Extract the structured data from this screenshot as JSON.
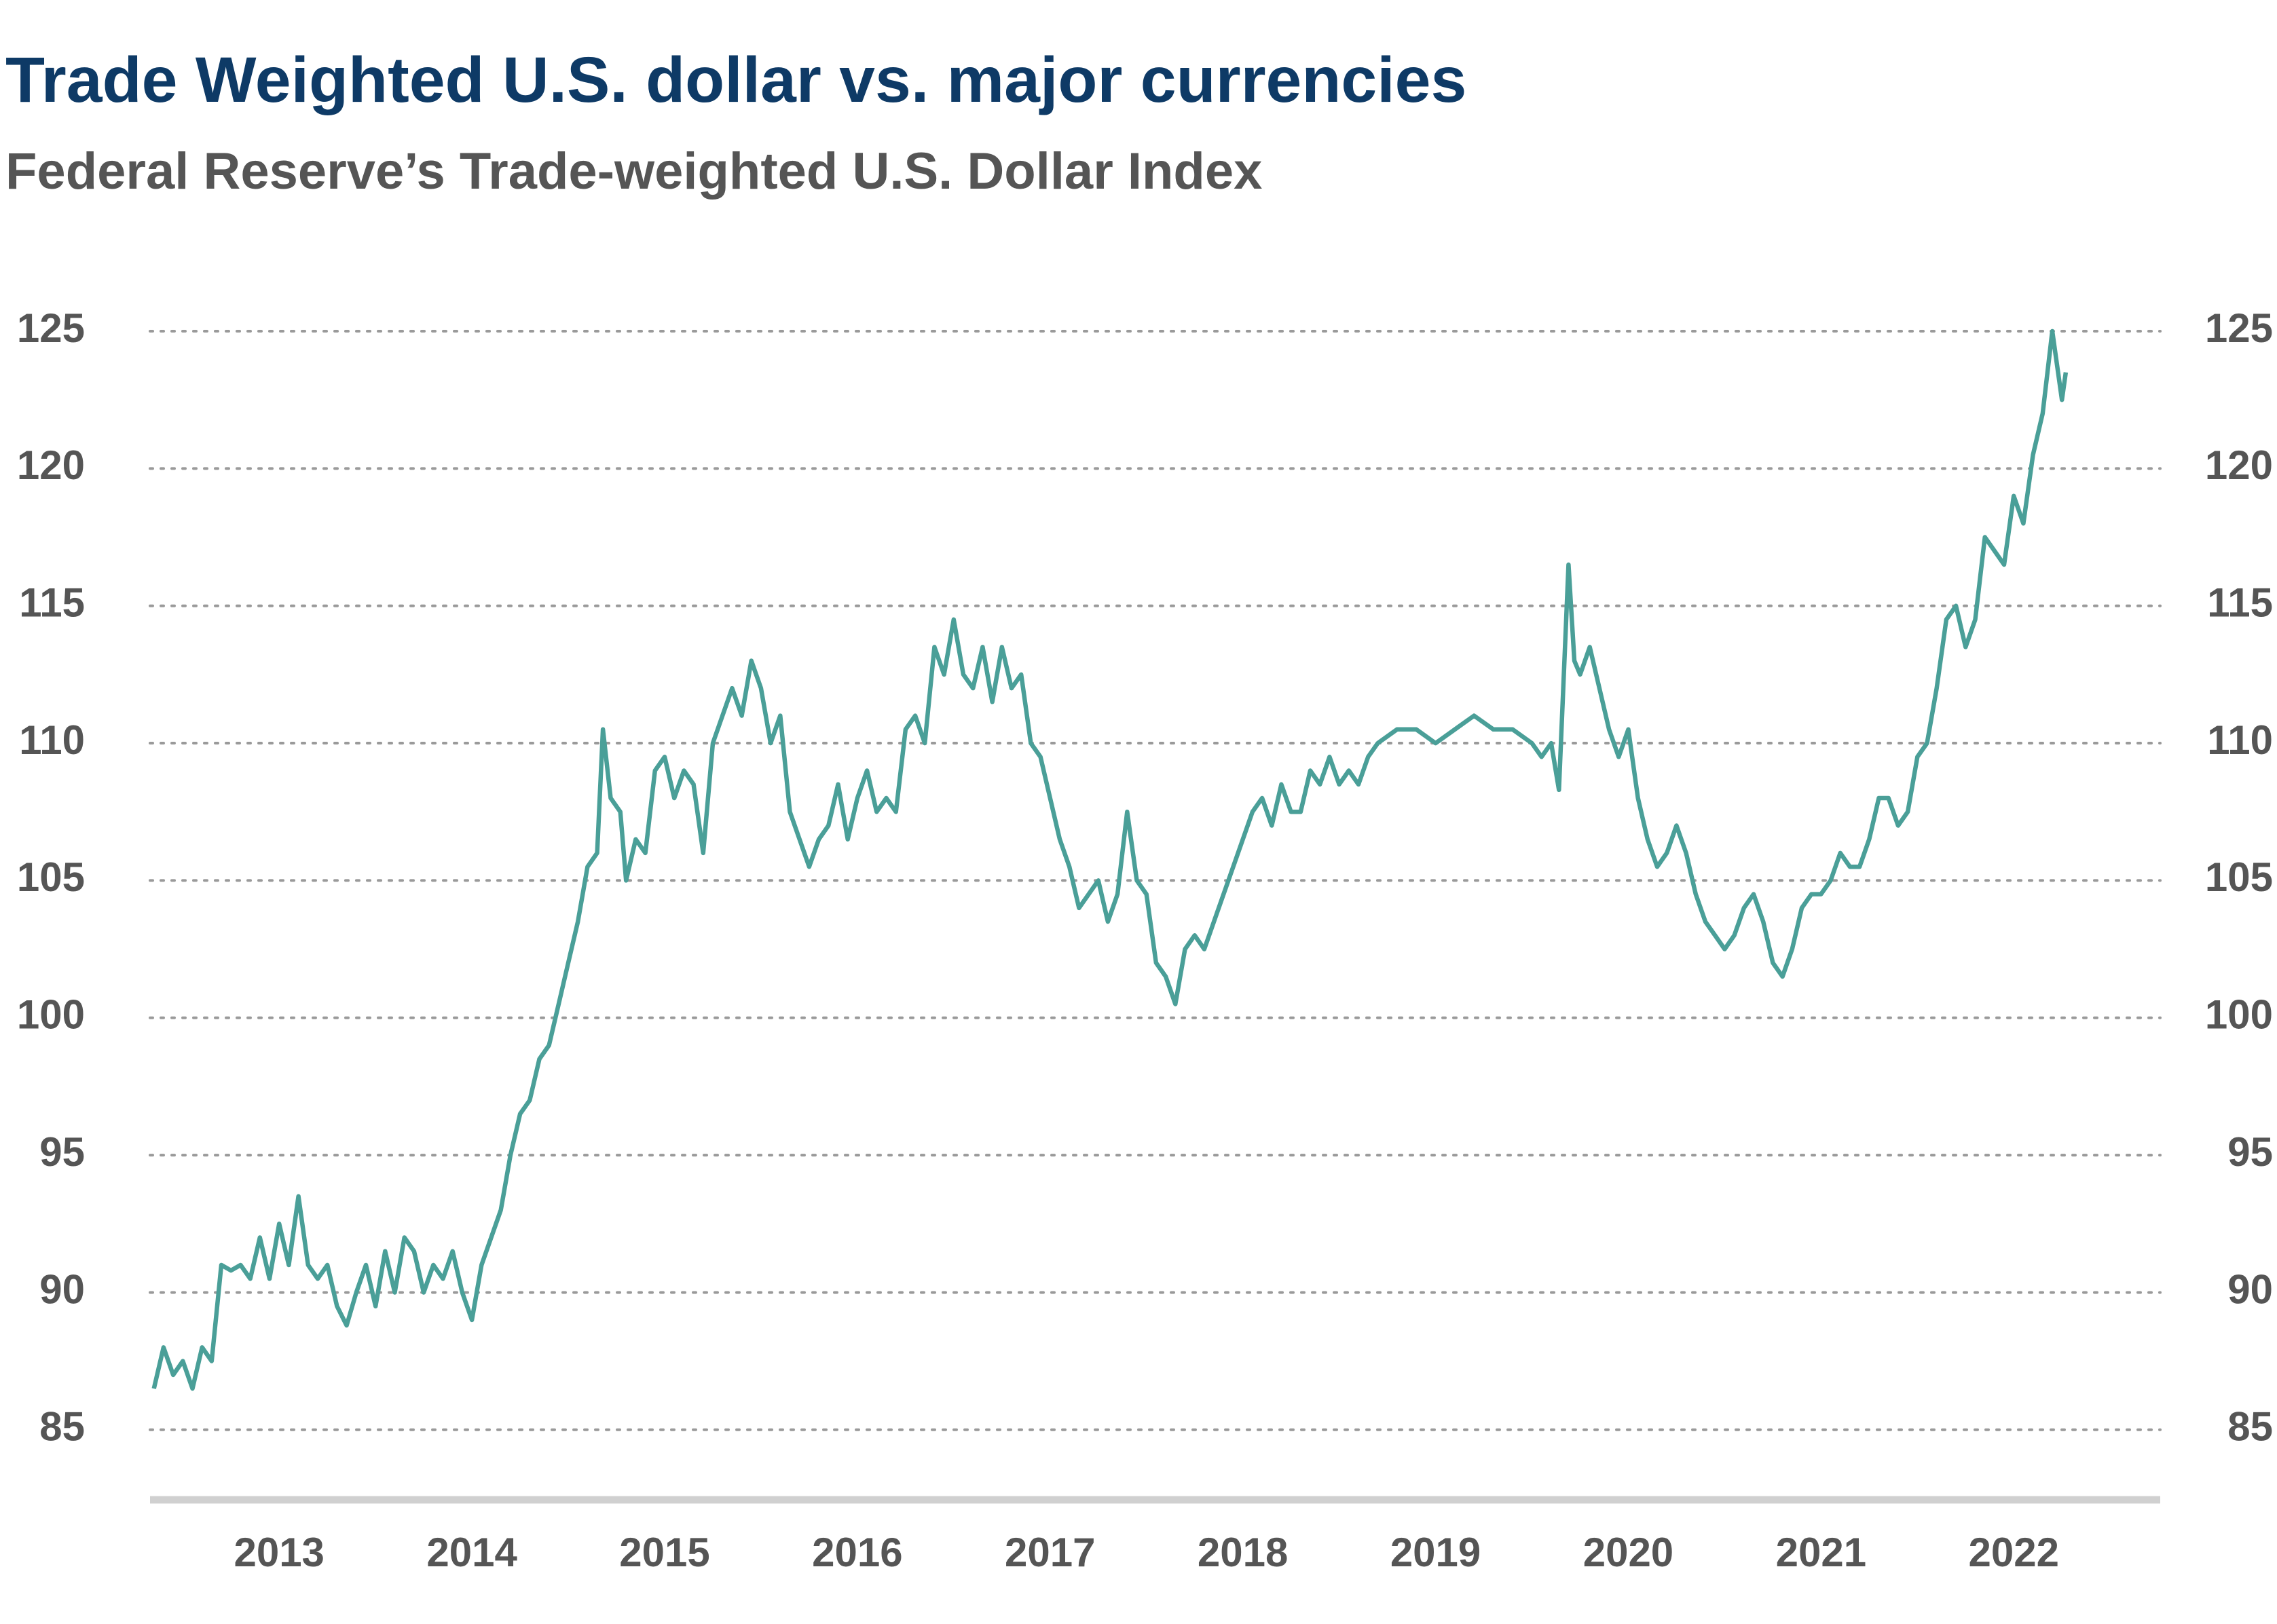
{
  "chart_data": {
    "type": "line",
    "title": "Trade Weighted U.S. dollar vs. major currencies",
    "subtitle": "Federal Reserve’s Trade-weighted U.S. Dollar Index",
    "color": "#4a9f98",
    "x": [
      2012.85,
      2012.9,
      2012.95,
      2013.0,
      2013.05,
      2013.1,
      2013.15,
      2013.2,
      2013.25,
      2013.3,
      2013.35,
      2013.4,
      2013.45,
      2013.5,
      2013.55,
      2013.6,
      2013.65,
      2013.7,
      2013.75,
      2013.8,
      2013.85,
      2013.9,
      2013.95,
      2014.0,
      2014.05,
      2014.1,
      2014.15,
      2014.2,
      2014.25,
      2014.3,
      2014.35,
      2014.4,
      2014.45,
      2014.5,
      2014.55,
      2014.6,
      2014.65,
      2014.7,
      2014.75,
      2014.8,
      2014.85,
      2014.9,
      2014.95,
      2015.0,
      2015.05,
      2015.1,
      2015.15,
      2015.18,
      2015.22,
      2015.27,
      2015.3,
      2015.35,
      2015.4,
      2015.45,
      2015.5,
      2015.55,
      2015.6,
      2015.65,
      2015.7,
      2015.75,
      2015.8,
      2015.85,
      2015.9,
      2015.95,
      2016.0,
      2016.05,
      2016.1,
      2016.15,
      2016.2,
      2016.25,
      2016.3,
      2016.35,
      2016.4,
      2016.45,
      2016.5,
      2016.55,
      2016.6,
      2016.65,
      2016.7,
      2016.75,
      2016.8,
      2016.85,
      2016.9,
      2016.95,
      2017.0,
      2017.05,
      2017.1,
      2017.15,
      2017.2,
      2017.25,
      2017.3,
      2017.35,
      2017.4,
      2017.45,
      2017.5,
      2017.55,
      2017.6,
      2017.65,
      2017.7,
      2017.75,
      2017.8,
      2017.85,
      2017.9,
      2017.95,
      2018.0,
      2018.05,
      2018.1,
      2018.15,
      2018.2,
      2018.25,
      2018.3,
      2018.35,
      2018.45,
      2018.5,
      2018.55,
      2018.6,
      2018.65,
      2018.7,
      2018.75,
      2018.8,
      2018.85,
      2018.9,
      2018.95,
      2019.0,
      2019.05,
      2019.1,
      2019.15,
      2019.2,
      2019.3,
      2019.4,
      2019.5,
      2019.6,
      2019.7,
      2019.8,
      2019.9,
      2020.0,
      2020.05,
      2020.1,
      2020.14,
      2020.19,
      2020.22,
      2020.25,
      2020.3,
      2020.35,
      2020.4,
      2020.45,
      2020.5,
      2020.55,
      2020.6,
      2020.65,
      2020.7,
      2020.75,
      2020.8,
      2020.85,
      2020.9,
      2020.95,
      2021.0,
      2021.05,
      2021.1,
      2021.15,
      2021.2,
      2021.25,
      2021.3,
      2021.35,
      2021.4,
      2021.45,
      2021.5,
      2021.55,
      2021.6,
      2021.65,
      2021.7,
      2021.75,
      2021.8,
      2021.85,
      2021.9,
      2021.95,
      2022.0,
      2022.05,
      2022.1,
      2022.15,
      2022.2,
      2022.25,
      2022.3,
      2022.35,
      2022.4,
      2022.45,
      2022.5,
      2022.55,
      2022.6,
      2022.65,
      2022.7,
      2022.75,
      2022.77
    ],
    "values": [
      86.5,
      88,
      87,
      87.5,
      86.5,
      88,
      87.5,
      91,
      90.8,
      91,
      90.5,
      92,
      90.5,
      92.5,
      91,
      93.5,
      91,
      90.5,
      91,
      89.5,
      88.8,
      90,
      91,
      89.5,
      91.5,
      90,
      92,
      91.5,
      90,
      91,
      90.5,
      91.5,
      90,
      89,
      91,
      92,
      93,
      95,
      96.5,
      97,
      98.5,
      99,
      100.5,
      102,
      103.5,
      105.5,
      106,
      110.5,
      108,
      107.5,
      105,
      106.5,
      106,
      109,
      109.5,
      108,
      109,
      108.5,
      106,
      110,
      111,
      112,
      111,
      113,
      112,
      110,
      111,
      107.5,
      106.5,
      105.5,
      106.5,
      107,
      108.5,
      106.5,
      108,
      109,
      107.5,
      108,
      107.5,
      110.5,
      111,
      110,
      113.5,
      112.5,
      114.5,
      112.5,
      112,
      113.5,
      111.5,
      113.5,
      112,
      112.5,
      110,
      109.5,
      108,
      106.5,
      105.5,
      104,
      104.5,
      105,
      103.5,
      104.5,
      107.5,
      105,
      104.5,
      102,
      101.5,
      100.5,
      102.5,
      103,
      102.5,
      103.5,
      105.5,
      106.5,
      107.5,
      108,
      107,
      108.5,
      107.5,
      107.5,
      109,
      108.5,
      109.5,
      108.5,
      109,
      108.5,
      109.5,
      110,
      110.5,
      110.5,
      110,
      110.5,
      111,
      110.5,
      110.5,
      110,
      109.5,
      110,
      108.3,
      116.5,
      113,
      112.5,
      113.5,
      112,
      110.5,
      109.5,
      110.5,
      108,
      106.5,
      105.5,
      106,
      107,
      106,
      104.5,
      103.5,
      103,
      102.5,
      103,
      104,
      104.5,
      103.5,
      102,
      101.5,
      102.5,
      104,
      104.5,
      104.5,
      105,
      106,
      105.5,
      105.5,
      106.5,
      108,
      108,
      107,
      107.5,
      109.5,
      110,
      112,
      114.5,
      115,
      113.5,
      114.5,
      117.5,
      117,
      116.5,
      119,
      118,
      120.5,
      122,
      125,
      122.5,
      123.5
    ],
    "xlim": [
      2012.83,
      2023.26
    ],
    "xticks": [
      {
        "value": 2013.5,
        "label": "2013"
      },
      {
        "value": 2014.5,
        "label": "2014"
      },
      {
        "value": 2015.5,
        "label": "2015"
      },
      {
        "value": 2016.5,
        "label": "2016"
      },
      {
        "value": 2017.5,
        "label": "2017"
      },
      {
        "value": 2018.5,
        "label": "2018"
      },
      {
        "value": 2019.5,
        "label": "2019"
      },
      {
        "value": 2020.5,
        "label": "2020"
      },
      {
        "value": 2021.5,
        "label": "2021"
      },
      {
        "value": 2022.5,
        "label": "2022"
      }
    ],
    "ylim": [
      82.45,
      125
    ],
    "yticks": [
      85,
      90,
      95,
      100,
      105,
      110,
      115,
      120,
      125
    ],
    "grid": true
  }
}
